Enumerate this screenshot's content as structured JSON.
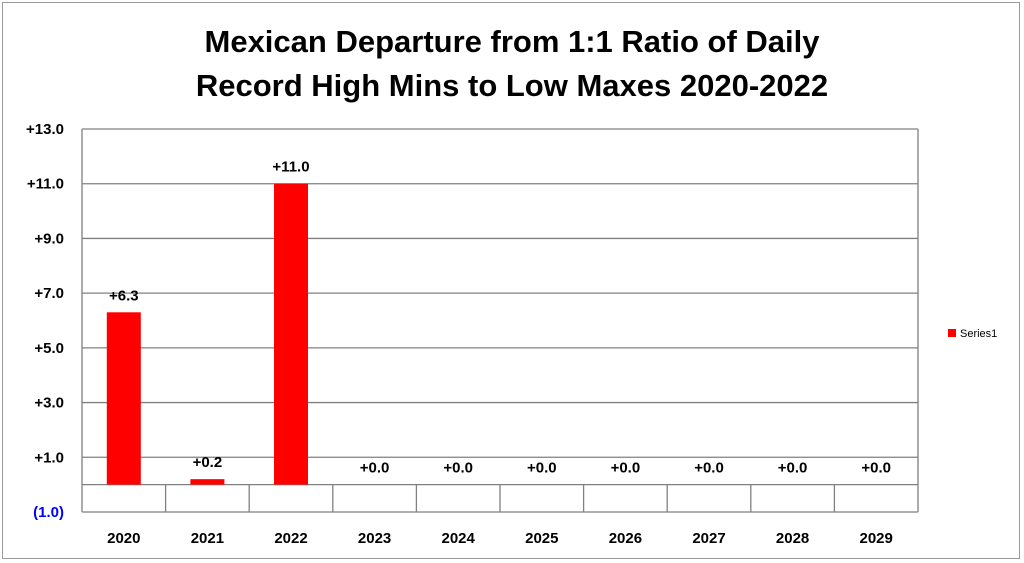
{
  "chart_data": {
    "type": "bar",
    "title_line1": "Mexican Departure from 1:1 Ratio of Daily",
    "title_line2": "Record High Mins to Low Maxes 2020-2022",
    "categories": [
      "2020",
      "2021",
      "2022",
      "2023",
      "2024",
      "2025",
      "2026",
      "2027",
      "2028",
      "2029"
    ],
    "series": [
      {
        "name": "Series1",
        "values": [
          6.3,
          0.2,
          11.0,
          0.0,
          0.0,
          0.0,
          0.0,
          0.0,
          0.0,
          0.0
        ],
        "labels": [
          "+6.3",
          "+0.2",
          "+11.0",
          "+0.0",
          "+0.0",
          "+0.0",
          "+0.0",
          "+0.0",
          "+0.0",
          "+0.0"
        ],
        "color": "#ff0000"
      }
    ],
    "yticks": [
      {
        "value": 13,
        "label": "+13.0"
      },
      {
        "value": 11,
        "label": "+11.0"
      },
      {
        "value": 9,
        "label": "+9.0"
      },
      {
        "value": 7,
        "label": "+7.0"
      },
      {
        "value": 5,
        "label": "+5.0"
      },
      {
        "value": 3,
        "label": "+3.0"
      },
      {
        "value": 1,
        "label": "+1.0"
      },
      {
        "value": -1,
        "label": "(1.0)"
      }
    ],
    "ylim": [
      -1,
      13
    ],
    "grid": true,
    "legend_position": "right",
    "negative_label_color": "#0000ff",
    "gridline_color": "#808080"
  }
}
